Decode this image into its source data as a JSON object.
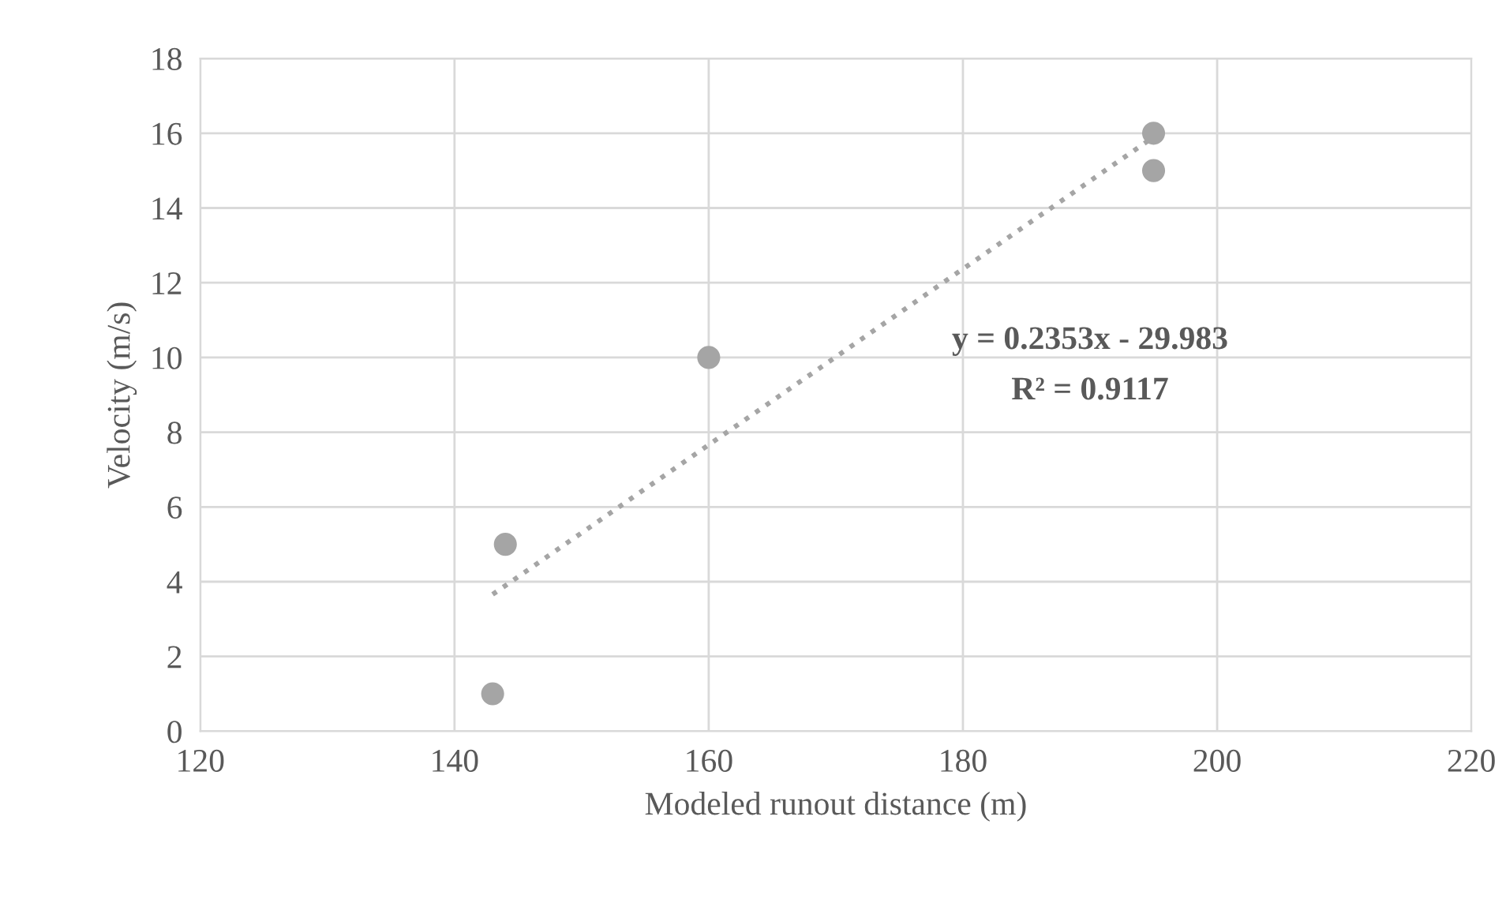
{
  "chart_data": {
    "type": "scatter",
    "xlabel": "Modeled runout distance (m)",
    "ylabel": "Velocity (m/s)",
    "series": [
      {
        "color": "#a5a5a5",
        "x": [
          143,
          144,
          160,
          195,
          195
        ],
        "values": [
          1,
          5,
          10,
          16,
          15
        ],
        "marker": "circle"
      },
      {
        "type": "line",
        "color": "#a5a5a5",
        "x": [
          143,
          195
        ],
        "values": [
          3.66,
          15.9
        ],
        "line_style": "dotted"
      }
    ],
    "annotations": [
      "y = 0.2353x - 29.983",
      "R² = 0.9117"
    ],
    "xlim": [
      120,
      220
    ],
    "xticks": [
      120,
      140,
      160,
      180,
      200,
      220
    ],
    "ylim": [
      0,
      18
    ],
    "yticks": [
      0,
      2,
      4,
      6,
      8,
      10,
      12,
      14,
      16,
      18
    ],
    "grid": true
  }
}
